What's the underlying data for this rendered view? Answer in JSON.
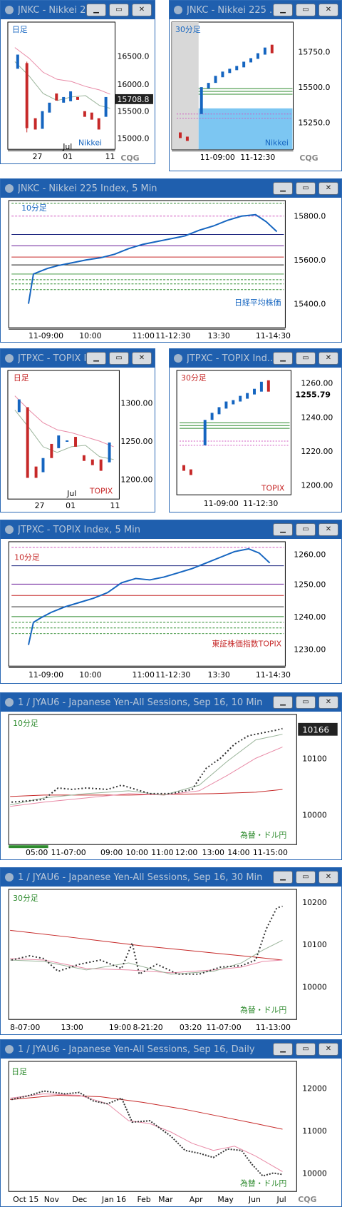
{
  "colors": {
    "up": "#1565c0",
    "down": "#c62828",
    "titlebar": "#1f5fae",
    "selected": "#5aa0e6"
  },
  "panels": {
    "p1": {
      "title": "JNKC - Nikkei 2...",
      "period": "日足",
      "label": "Nikkei",
      "yticks": [
        "16500.0",
        "16000.0",
        "15500.0",
        "15000.0"
      ],
      "xticks": [
        "27",
        "01",
        "11"
      ],
      "month": "Jul",
      "last": "15708.8",
      "logo": "CQG"
    },
    "p2": {
      "title": "JNKC - Nikkei 225 ...",
      "period": "30分足",
      "label": "Nikkei",
      "yticks": [
        "15750.0",
        "15500.0",
        "15250.0"
      ],
      "xticks": [
        "11-09:00",
        "11-12:30"
      ],
      "logo": "CQG"
    },
    "p3": {
      "title": "JNKC - Nikkei 225 Index, 5 Min",
      "period": "10分足",
      "label": "日経平均株価",
      "yticks": [
        "15800.0",
        "15600.0",
        "15400.0"
      ],
      "xticks": [
        "11-09:00",
        "10:00",
        "11:00",
        "11-12:30",
        "13:30",
        "11-14:30"
      ]
    },
    "p4": {
      "title": "JTPXC - TOPIX I...",
      "period": "日足",
      "label": "TOPIX",
      "yticks": [
        "1300.00",
        "1250.00",
        "1200.00"
      ],
      "xticks": [
        "27",
        "01",
        "11"
      ],
      "month": "Jul"
    },
    "p5": {
      "title": "JTPXC - TOPIX Ind...",
      "period": "30分足",
      "label": "TOPIX",
      "yticks": [
        "1260.00",
        "1240.00",
        "1220.00",
        "1200.00"
      ],
      "xticks": [
        "11-09:00",
        "11-12:30"
      ],
      "last": "1255.79"
    },
    "p6": {
      "title": "JTPXC - TOPIX Index, 5 Min",
      "period": "10分足",
      "label": "東証株価指数TOPIX",
      "yticks": [
        "1260.00",
        "1250.00",
        "1240.00",
        "1230.00"
      ],
      "xticks": [
        "11-09:00",
        "10:00",
        "11:00",
        "11-12:30",
        "13:30",
        "11-14:30"
      ]
    },
    "p7": {
      "title": "1 / JYAU6 - Japanese Yen-All Sessions, Sep 16, 10 Min",
      "period": "10分足",
      "label": "為替・ドル円",
      "yticks": [
        "10100",
        "10000"
      ],
      "last": "10166",
      "xticks": [
        "05:00",
        "11-07:00",
        "09:00",
        "10:00",
        "11:00",
        "12:00",
        "13:00",
        "14:00",
        "11-15:00"
      ]
    },
    "p8": {
      "title": "1 / JYAU6 - Japanese Yen-All Sessions, Sep 16, 30 Min",
      "period": "30分足",
      "label": "為替・ドル円",
      "yticks": [
        "10200",
        "10100",
        "10000"
      ],
      "xticks": [
        "8-07:00",
        "13:00",
        "19:00",
        "8-21:20",
        "03:20",
        "11-07:00",
        "11-13:00"
      ]
    },
    "p9": {
      "title": "1 / JYAU6 - Japanese Yen-All Sessions, Sep 16, Daily",
      "period": "日足",
      "label": "為替・ドル円",
      "yticks": [
        "12000",
        "11000",
        "10000"
      ],
      "xticks": [
        "Oct 15",
        "Nov",
        "Dec",
        "Jan 16",
        "Feb",
        "Mar",
        "Apr",
        "May",
        "Jun",
        "Jul"
      ],
      "logo": "CQG"
    }
  },
  "window_buttons": {
    "min": "▁",
    "restore": "▭",
    "close": "✕"
  }
}
